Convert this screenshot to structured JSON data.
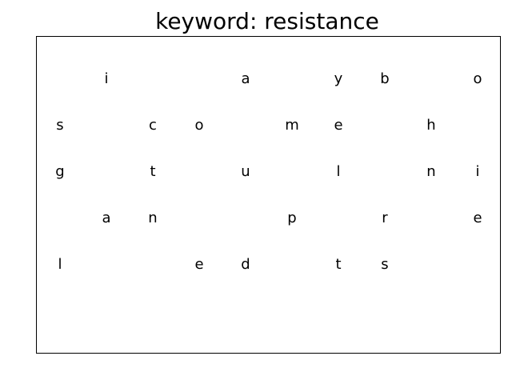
{
  "title": "keyword: resistance",
  "grid": {
    "rows": 5,
    "cols": 10,
    "cells": [
      [
        "",
        "i",
        "",
        "",
        "a",
        "",
        "y",
        "b",
        "",
        "o"
      ],
      [
        "s",
        "",
        "c",
        "o",
        "",
        "m",
        "e",
        "",
        "h",
        ""
      ],
      [
        "g",
        "",
        "t",
        "",
        "u",
        "",
        "l",
        "",
        "n",
        "i"
      ],
      [
        "",
        "a",
        "n",
        "",
        "",
        "p",
        "",
        "r",
        "",
        "e"
      ],
      [
        "l",
        "",
        "",
        "e",
        "d",
        "",
        "t",
        "s",
        "",
        ""
      ]
    ]
  }
}
